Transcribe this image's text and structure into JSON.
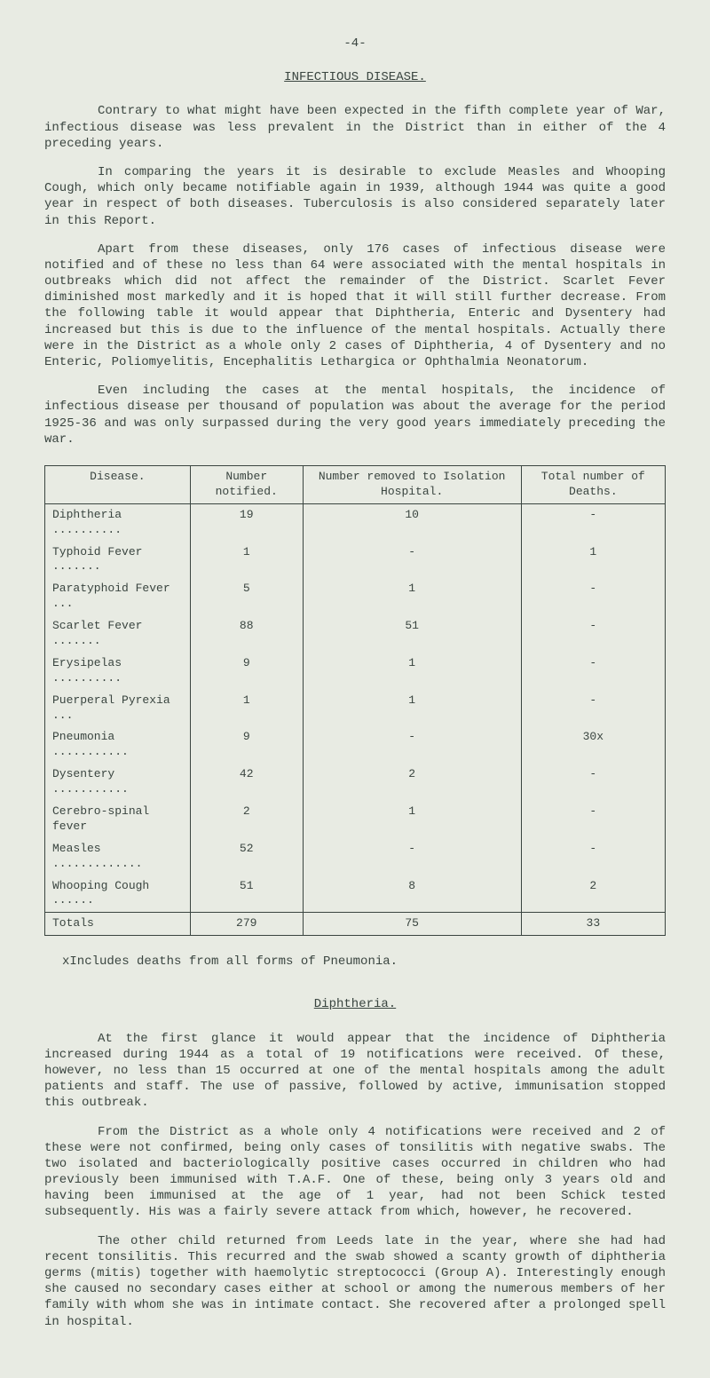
{
  "page_number": "-4-",
  "title": "INFECTIOUS DISEASE.",
  "para1": "Contrary to what might have been expected in the fifth complete year of War, infectious disease was less prevalent in the District than in either of the 4 preceding years.",
  "para2": "In comparing the years it is desirable to exclude Measles and Whooping Cough, which only became notifiable again in 1939, although 1944 was quite a good year in respect of both diseases. Tuberculosis is also considered separately later in this Report.",
  "para3": "Apart from these diseases, only 176 cases of infectious disease were notified and of these no less than 64 were associated with the mental hospitals in outbreaks which did not affect the remainder of the District. Scarlet Fever diminished most markedly and it is hoped that it will still further decrease. From the following table it would appear that Diphtheria, Enteric and Dysentery had increased but this is due to the influence of the mental hospitals. Actually there were in the District as a whole only 2 cases of Diphtheria, 4 of Dysentery and no Enteric, Poliomyelitis, Encephalitis Lethargica or Ophthalmia Neonatorum.",
  "para4": "Even including the cases at the mental hospitals, the incidence of infectious disease per thousand of population was about the average for the period 1925-36 and was only surpassed during the very good years immediately preceding the war.",
  "table": {
    "headers": [
      "Disease.",
      "Number notified.",
      "Number removed to Isolation Hospital.",
      "Total number of Deaths."
    ],
    "rows": [
      [
        "Diphtheria ..........",
        "19",
        "10",
        "-"
      ],
      [
        "Typhoid Fever .......",
        "1",
        "-",
        "1"
      ],
      [
        "Paratyphoid Fever ...",
        "5",
        "1",
        "-"
      ],
      [
        "Scarlet Fever .......",
        "88",
        "51",
        "-"
      ],
      [
        "Erysipelas ..........",
        "9",
        "1",
        "-"
      ],
      [
        "Puerperal Pyrexia ...",
        "1",
        "1",
        "-"
      ],
      [
        "Pneumonia ...........",
        "9",
        "-",
        "30x"
      ],
      [
        "Dysentery ...........",
        "42",
        "2",
        "-"
      ],
      [
        "Cerebro-spinal fever",
        "2",
        "1",
        "-"
      ],
      [
        "Measles .............",
        "52",
        "-",
        "-"
      ],
      [
        "Whooping Cough ......",
        "51",
        "8",
        "2"
      ]
    ],
    "totals": [
      "Totals",
      "279",
      "75",
      "33"
    ]
  },
  "footnote": "xIncludes deaths from all forms of Pneumonia.",
  "subheading": "Diphtheria.",
  "para5": "At the first glance it would appear that the incidence of Diphtheria increased during 1944 as a total of 19 notifications were received. Of these, however, no less than 15 occurred at one of the mental hospitals among the adult patients and staff. The use of passive, followed by active, immunisation stopped this outbreak.",
  "para6": "From the District as a whole only 4 notifications were received and 2 of these were not confirmed, being only cases of tonsilitis with negative swabs. The two isolated and bacteriologically positive cases occurred in children who had previously been immunised with T.A.F. One of these, being only 3 years old and having been immunised at the age of 1 year, had not been Schick tested subsequently. His was a fairly severe attack from which, however, he recovered.",
  "para7": "The other child returned from Leeds late in the year, where she had had recent tonsilitis. This recurred and the swab showed a scanty growth of diphtheria germs (mitis) together with haemolytic streptococci (Group A). Interestingly enough she caused no secondary cases either at school or among the numerous members of her family with whom she was in intimate contact. She recovered after a prolonged spell in hospital."
}
